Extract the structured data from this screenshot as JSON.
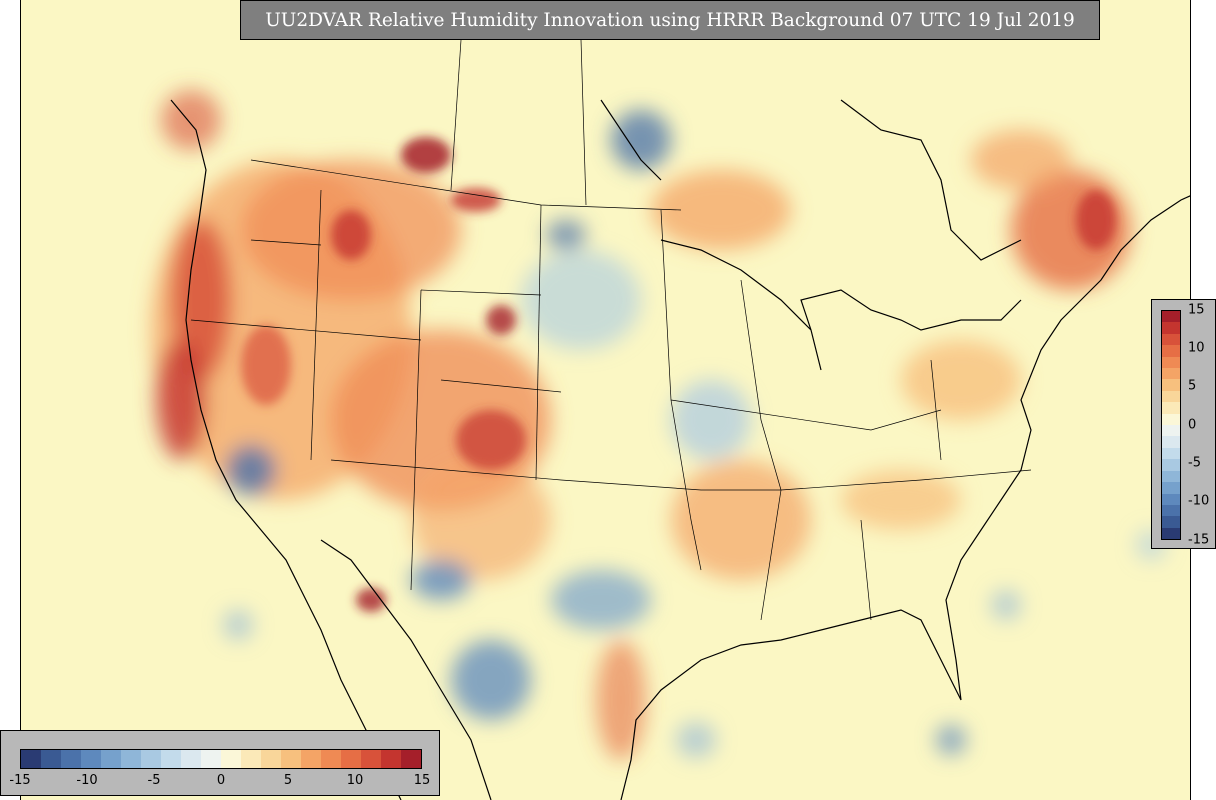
{
  "title": "UU2DVAR Relative Humidity Innovation using HRRR Background 07 UTC 19 Jul 2019",
  "colorbar": {
    "colors": [
      "#2a3b73",
      "#3a5a93",
      "#4b72aa",
      "#5e89bd",
      "#76a1cc",
      "#8fb6d8",
      "#a9c9e2",
      "#c3dbeb",
      "#dbe8ef",
      "#eef3f0",
      "#fbf7d8",
      "#fbe9b8",
      "#f9d69a",
      "#f7c07e",
      "#f4a466",
      "#ef8a54",
      "#e66e45",
      "#d8523a",
      "#c4352f",
      "#a51f2a"
    ],
    "h_ticks": [
      "-15",
      "-10",
      "-5",
      "0",
      "5",
      "10",
      "15"
    ],
    "v_ticks": [
      "15",
      "10",
      "5",
      "0",
      "-5",
      "-10",
      "-15"
    ]
  }
}
